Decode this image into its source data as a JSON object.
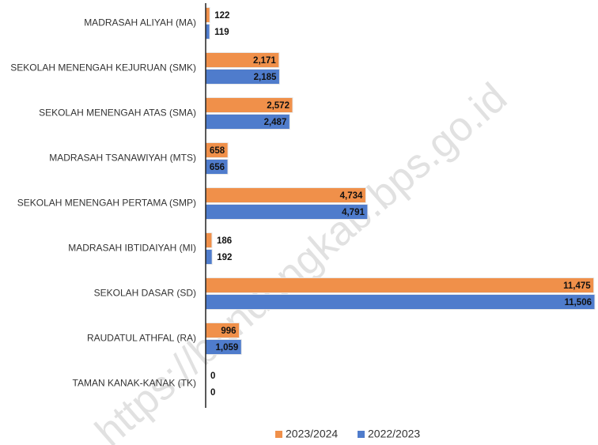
{
  "chart_data": {
    "type": "bar",
    "orientation": "horizontal",
    "categories": [
      "MADRASAH ALIYAH (MA)",
      "SEKOLAH MENENGAH KEJURUAN (SMK)",
      "SEKOLAH MENENGAH ATAS (SMA)",
      "MADRASAH TSANAWIYAH (MTS)",
      "SEKOLAH MENENGAH PERTAMA (SMP)",
      "MADRASAH IBTIDAIYAH (MI)",
      "SEKOLAH DASAR (SD)",
      "RAUDATUL ATHFAL (RA)",
      "TAMAN KANAK-KANAK (TK)"
    ],
    "series": [
      {
        "name": "2023/2024",
        "color": "#f0904a",
        "values": [
          122,
          2171,
          2572,
          658,
          4734,
          186,
          11475,
          996,
          0
        ],
        "value_labels": [
          "122",
          "2,171",
          "2,572",
          "658",
          "4,734",
          "186",
          "11,475",
          "996",
          "0"
        ]
      },
      {
        "name": "2022/2023",
        "color": "#4f7ccc",
        "values": [
          119,
          2185,
          2487,
          656,
          4791,
          192,
          11506,
          1059,
          0
        ],
        "value_labels": [
          "119",
          "2,185",
          "2,487",
          "656",
          "4,791",
          "192",
          "11,506",
          "1,059",
          "0"
        ]
      }
    ],
    "legend": "bottom",
    "watermark": "https://bandungkab.bps.go.id"
  }
}
